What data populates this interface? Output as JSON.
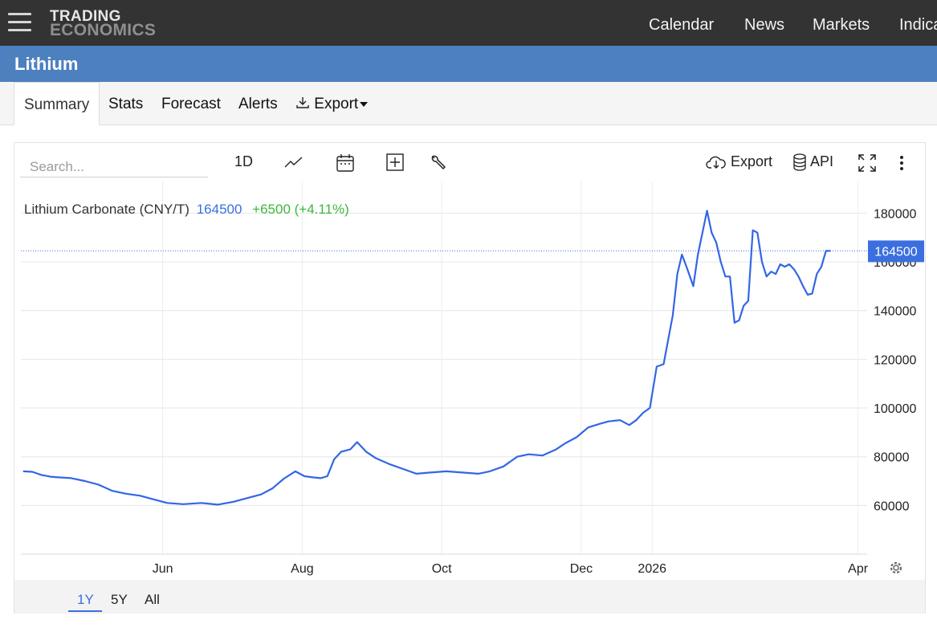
{
  "nav": {
    "logo_line1": "TRADING",
    "logo_line2": "ECONOMICS",
    "links": [
      "Calendar",
      "News",
      "Markets",
      "Indica"
    ]
  },
  "page_title": "Lithium",
  "tabs": [
    "Summary",
    "Stats",
    "Forecast",
    "Alerts",
    "Export"
  ],
  "toolbar": {
    "search_placeholder": "Search...",
    "interval": "1D",
    "export_label": "Export",
    "api_label": "API"
  },
  "legend": {
    "name": "Lithium Carbonate (CNY/T)",
    "last": "164500",
    "change": "+6500 (+4.11%)"
  },
  "range_buttons": [
    "1Y",
    "5Y",
    "All"
  ],
  "colors": {
    "line": "#3366e6",
    "price_tag": "#3b6fe0",
    "change": "#3cb83c",
    "topbar": "#333333",
    "titlebar": "#4d80bf"
  },
  "chart_data": {
    "type": "line",
    "series": [
      {
        "name": "Lithium Carbonate (CNY/T)",
        "x": [
          "2025-04-01",
          "2025-04-05",
          "2025-04-09",
          "2025-04-13",
          "2025-04-17",
          "2025-04-22",
          "2025-04-28",
          "2025-05-04",
          "2025-05-10",
          "2025-05-16",
          "2025-05-22",
          "2025-05-28",
          "2025-06-03",
          "2025-06-10",
          "2025-06-18",
          "2025-06-25",
          "2025-07-02",
          "2025-07-08",
          "2025-07-14",
          "2025-07-19",
          "2025-07-24",
          "2025-07-29",
          "2025-08-02",
          "2025-08-06",
          "2025-08-09",
          "2025-08-12",
          "2025-08-15",
          "2025-08-18",
          "2025-08-22",
          "2025-08-25",
          "2025-08-29",
          "2025-09-02",
          "2025-09-08",
          "2025-09-14",
          "2025-09-20",
          "2025-09-26",
          "2025-10-03",
          "2025-10-10",
          "2025-10-17",
          "2025-10-22",
          "2025-10-28",
          "2025-11-03",
          "2025-11-08",
          "2025-11-14",
          "2025-11-20",
          "2025-11-24",
          "2025-11-29",
          "2025-12-04",
          "2025-12-09",
          "2025-12-13",
          "2025-12-18",
          "2025-12-22",
          "2025-12-25",
          "2025-12-28",
          "2025-12-31",
          "2026-01-03",
          "2026-01-06",
          "2026-01-08",
          "2026-01-10",
          "2026-01-12",
          "2026-01-14",
          "2026-01-16",
          "2026-01-19",
          "2026-01-21",
          "2026-01-23",
          "2026-01-25",
          "2026-01-27",
          "2026-01-29",
          "2026-01-31",
          "2026-02-02",
          "2026-02-04",
          "2026-02-06",
          "2026-02-08",
          "2026-02-10",
          "2026-02-12",
          "2026-02-14",
          "2026-02-16",
          "2026-02-18",
          "2026-02-20",
          "2026-02-22",
          "2026-02-24",
          "2026-02-26",
          "2026-02-28",
          "2026-03-02",
          "2026-03-04",
          "2026-03-06",
          "2026-03-08",
          "2026-03-10",
          "2026-03-12",
          "2026-03-14",
          "2026-03-16",
          "2026-03-18",
          "2026-03-20",
          "2026-03-22",
          "2026-03-24",
          "2026-03-26",
          "2026-03-28"
        ],
        "values": [
          74000,
          73800,
          72500,
          71800,
          71500,
          71200,
          70000,
          68500,
          66000,
          64800,
          64000,
          62500,
          61000,
          60500,
          61000,
          60300,
          61500,
          63000,
          64500,
          67000,
          71000,
          74000,
          72000,
          71500,
          71200,
          72000,
          79000,
          82000,
          83000,
          86000,
          82000,
          79500,
          77000,
          75000,
          73000,
          73500,
          74000,
          73500,
          73000,
          74000,
          76000,
          80000,
          81000,
          80500,
          83000,
          85500,
          88000,
          92000,
          93500,
          94500,
          95000,
          93000,
          95000,
          98000,
          100000,
          117000,
          118000,
          128000,
          138000,
          155000,
          163000,
          158000,
          150000,
          163000,
          172000,
          181000,
          172000,
          168000,
          160000,
          154000,
          154000,
          135000,
          136000,
          142000,
          144000,
          173000,
          172000,
          160000,
          154000,
          156000,
          155000,
          159000,
          158000,
          159000,
          157000,
          154000,
          150000,
          146500,
          147000,
          155000,
          158000,
          164500,
          164500,
          164500,
          164500,
          164500,
          164500
        ]
      }
    ],
    "x_ticks": [
      "Jun",
      "Aug",
      "Oct",
      "Dec",
      "2026",
      "Apr"
    ],
    "y_ticks": [
      60000,
      80000,
      100000,
      120000,
      140000,
      160000,
      180000
    ],
    "ylim": [
      40000,
      193000
    ],
    "last_value": 164500,
    "grid": true,
    "y_axis_position": "right"
  }
}
